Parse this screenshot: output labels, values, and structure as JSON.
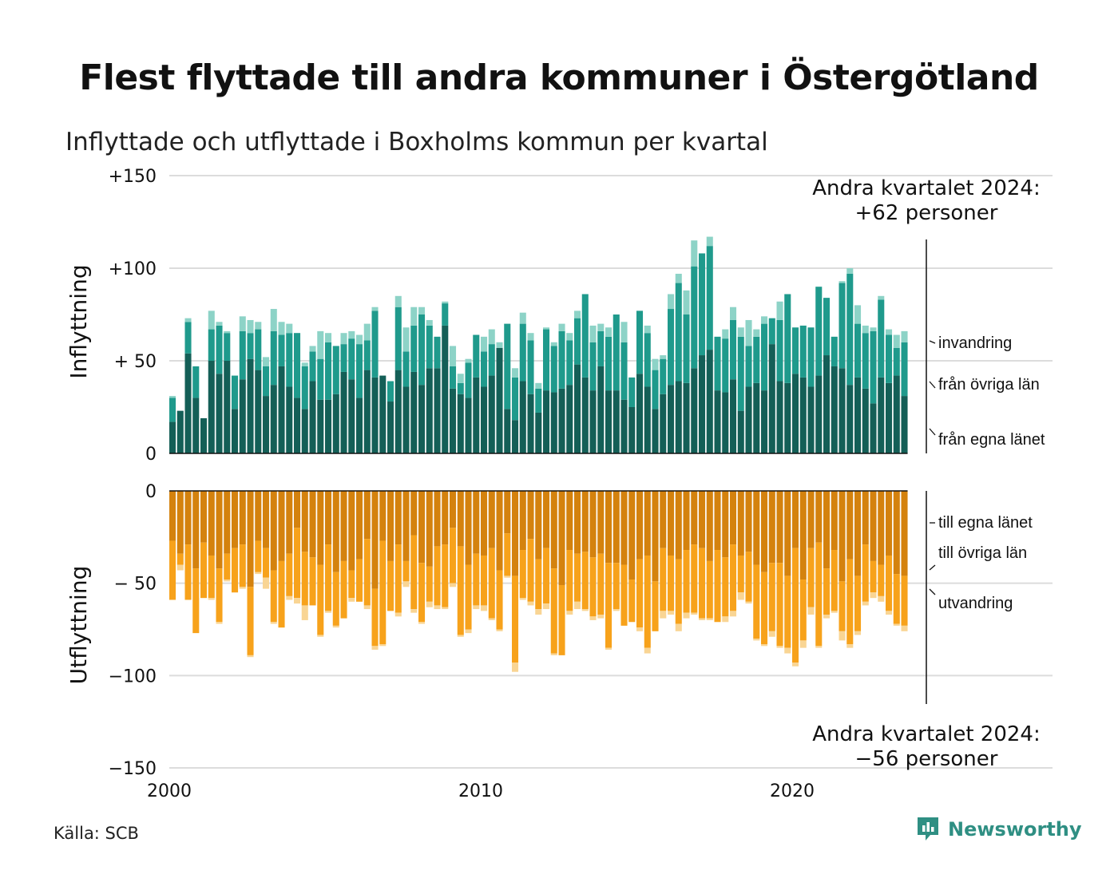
{
  "title": "Flest flyttade till andra kommuner i Östergötland",
  "subtitle": "Inflyttade och utflyttade i Boxholms kommun per kvartal",
  "source": "Källa: SCB",
  "brand": "Newsworthy",
  "colors": {
    "in_own": "#145f57",
    "in_other": "#1f9a8c",
    "in_immig": "#8dd3c7",
    "out_own": "#d4820e",
    "out_other": "#f7a21b",
    "out_emig": "#f9d594",
    "grid": "#dcdcdc",
    "brand": "#2f8f83"
  },
  "chart_data": [
    {
      "type": "bar",
      "stacked": true,
      "ylabel": "Inflyttning",
      "ylim": [
        0,
        150
      ],
      "yticks": [
        "0",
        "+ 50",
        "+100",
        "+150"
      ],
      "annotation": [
        "Andra kvartalet 2024:",
        "+62 personer"
      ],
      "x_start": 2000,
      "xticks": [
        "2000",
        "2010",
        "2020"
      ],
      "series": [
        {
          "name": "från egna länet",
          "values": [
            17,
            23,
            54,
            30,
            19,
            50,
            43,
            50,
            24,
            40,
            51,
            45,
            31,
            37,
            47,
            36,
            30,
            24,
            39,
            29,
            29,
            32,
            44,
            40,
            30,
            45,
            41,
            42,
            28,
            45,
            36,
            44,
            37,
            46,
            46,
            69,
            35,
            32,
            30,
            41,
            36,
            42,
            57,
            24,
            18,
            39,
            32,
            22,
            34,
            33,
            35,
            37,
            48,
            41,
            34,
            47,
            34,
            34,
            29,
            25,
            43,
            36,
            24,
            32,
            37,
            39,
            38,
            46,
            53,
            56,
            34,
            33,
            40,
            23,
            36,
            38,
            34,
            59,
            39,
            38,
            43,
            41,
            36,
            42,
            53,
            47,
            46,
            37,
            41,
            35,
            27,
            41,
            38,
            42,
            31
          ]
        },
        {
          "name": "från övriga län",
          "values": [
            13,
            0,
            17,
            17,
            0,
            17,
            26,
            15,
            18,
            26,
            14,
            22,
            16,
            29,
            17,
            29,
            35,
            23,
            16,
            22,
            31,
            26,
            15,
            22,
            29,
            16,
            36,
            0,
            11,
            34,
            19,
            25,
            38,
            23,
            17,
            12,
            12,
            6,
            19,
            23,
            19,
            17,
            0,
            46,
            23,
            31,
            29,
            13,
            33,
            25,
            31,
            24,
            25,
            45,
            26,
            19,
            29,
            41,
            31,
            16,
            34,
            29,
            21,
            19,
            41,
            53,
            37,
            55,
            55,
            56,
            29,
            29,
            32,
            40,
            22,
            25,
            36,
            14,
            33,
            48,
            25,
            28,
            32,
            48,
            31,
            16,
            46,
            60,
            29,
            30,
            39,
            42,
            26,
            15,
            29
          ]
        },
        {
          "name": "invandring",
          "values": [
            1,
            0,
            2,
            0,
            0,
            10,
            2,
            1,
            0,
            8,
            7,
            4,
            5,
            12,
            7,
            5,
            0,
            2,
            3,
            15,
            5,
            0,
            6,
            4,
            5,
            9,
            2,
            0,
            0,
            6,
            13,
            10,
            4,
            3,
            0,
            1,
            11,
            5,
            2,
            0,
            8,
            8,
            3,
            0,
            5,
            6,
            4,
            3,
            1,
            2,
            4,
            4,
            4,
            0,
            9,
            4,
            5,
            0,
            11,
            0,
            0,
            4,
            6,
            2,
            8,
            5,
            13,
            14,
            0,
            5,
            0,
            5,
            7,
            5,
            14,
            4,
            4,
            0,
            10,
            0,
            0,
            0,
            0,
            0,
            0,
            0,
            1,
            3,
            10,
            4,
            2,
            2,
            3,
            7,
            6
          ]
        }
      ]
    },
    {
      "type": "bar",
      "stacked": true,
      "ylabel": "Utflyttning",
      "ylim": [
        -150,
        0
      ],
      "yticks": [
        "−150",
        "−100",
        "− 50",
        "0"
      ],
      "annotation": [
        "Andra kvartalet 2024:",
        "−56 personer"
      ],
      "x_start": 2000,
      "xticks": [
        "2000",
        "2010",
        "2020"
      ],
      "series": [
        {
          "name": "till egna länet",
          "values": [
            -27,
            -34,
            -29,
            -42,
            -28,
            -35,
            -42,
            -34,
            -31,
            -29,
            -52,
            -27,
            -31,
            -43,
            -38,
            -34,
            -20,
            -33,
            -36,
            -40,
            -29,
            -44,
            -38,
            -43,
            -37,
            -26,
            -53,
            -27,
            -38,
            -29,
            -38,
            -24,
            -39,
            -41,
            -30,
            -29,
            -20,
            -30,
            -40,
            -34,
            -35,
            -31,
            -43,
            -23,
            -46,
            -32,
            -26,
            -37,
            -31,
            -42,
            -51,
            -32,
            -34,
            -33,
            -36,
            -34,
            -39,
            -39,
            -40,
            -48,
            -37,
            -35,
            -49,
            -31,
            -35,
            -37,
            -32,
            -29,
            -31,
            -38,
            -32,
            -36,
            -29,
            -35,
            -33,
            -40,
            -44,
            -39,
            -39,
            -46,
            -31,
            -48,
            -31,
            -28,
            -42,
            -32,
            -49,
            -37,
            -46,
            -29,
            -38,
            -40,
            -35,
            -45,
            -46
          ]
        },
        {
          "name": "till övriga län",
          "values": [
            -32,
            -6,
            -30,
            -35,
            -30,
            -23,
            -29,
            -14,
            -24,
            -23,
            -37,
            -17,
            -16,
            -28,
            -36,
            -23,
            -38,
            -29,
            -26,
            -38,
            -36,
            -29,
            -31,
            -15,
            -23,
            -36,
            -31,
            -56,
            -27,
            -37,
            -11,
            -40,
            -32,
            -19,
            -32,
            -34,
            -30,
            -48,
            -35,
            -28,
            -27,
            -38,
            -32,
            -23,
            -47,
            -26,
            -34,
            -27,
            -30,
            -46,
            -38,
            -33,
            -26,
            -31,
            -32,
            -33,
            -46,
            -25,
            -33,
            -23,
            -37,
            -50,
            -27,
            -34,
            -30,
            -35,
            -34,
            -37,
            -38,
            -31,
            -39,
            -32,
            -36,
            -20,
            -27,
            -40,
            -39,
            -37,
            -45,
            -39,
            -62,
            -33,
            -32,
            -56,
            -25,
            -33,
            -27,
            -46,
            -30,
            -31,
            -17,
            -17,
            -30,
            -27,
            -27
          ]
        },
        {
          "name": "utvandring",
          "values": [
            0,
            -3,
            0,
            0,
            0,
            -1,
            -1,
            -1,
            0,
            -1,
            -1,
            -1,
            -6,
            -1,
            0,
            -2,
            -3,
            -8,
            0,
            -1,
            -1,
            -1,
            0,
            -2,
            0,
            -2,
            -2,
            -1,
            0,
            -2,
            -3,
            -2,
            -1,
            -3,
            -2,
            -1,
            -2,
            -1,
            -2,
            -2,
            -3,
            -1,
            -1,
            -1,
            -5,
            -1,
            -2,
            -3,
            -3,
            -1,
            0,
            -2,
            -4,
            -1,
            -2,
            -2,
            -1,
            -1,
            0,
            0,
            -2,
            -3,
            0,
            -4,
            -2,
            -4,
            -3,
            -1,
            -1,
            -1,
            0,
            -3,
            -3,
            -4,
            -1,
            -1,
            -1,
            -3,
            -1,
            -3,
            -2,
            -4,
            -4,
            -1,
            -2,
            -1,
            -5,
            -2,
            -2,
            -2,
            -3,
            -3,
            -2,
            -1,
            -3
          ]
        }
      ]
    }
  ]
}
